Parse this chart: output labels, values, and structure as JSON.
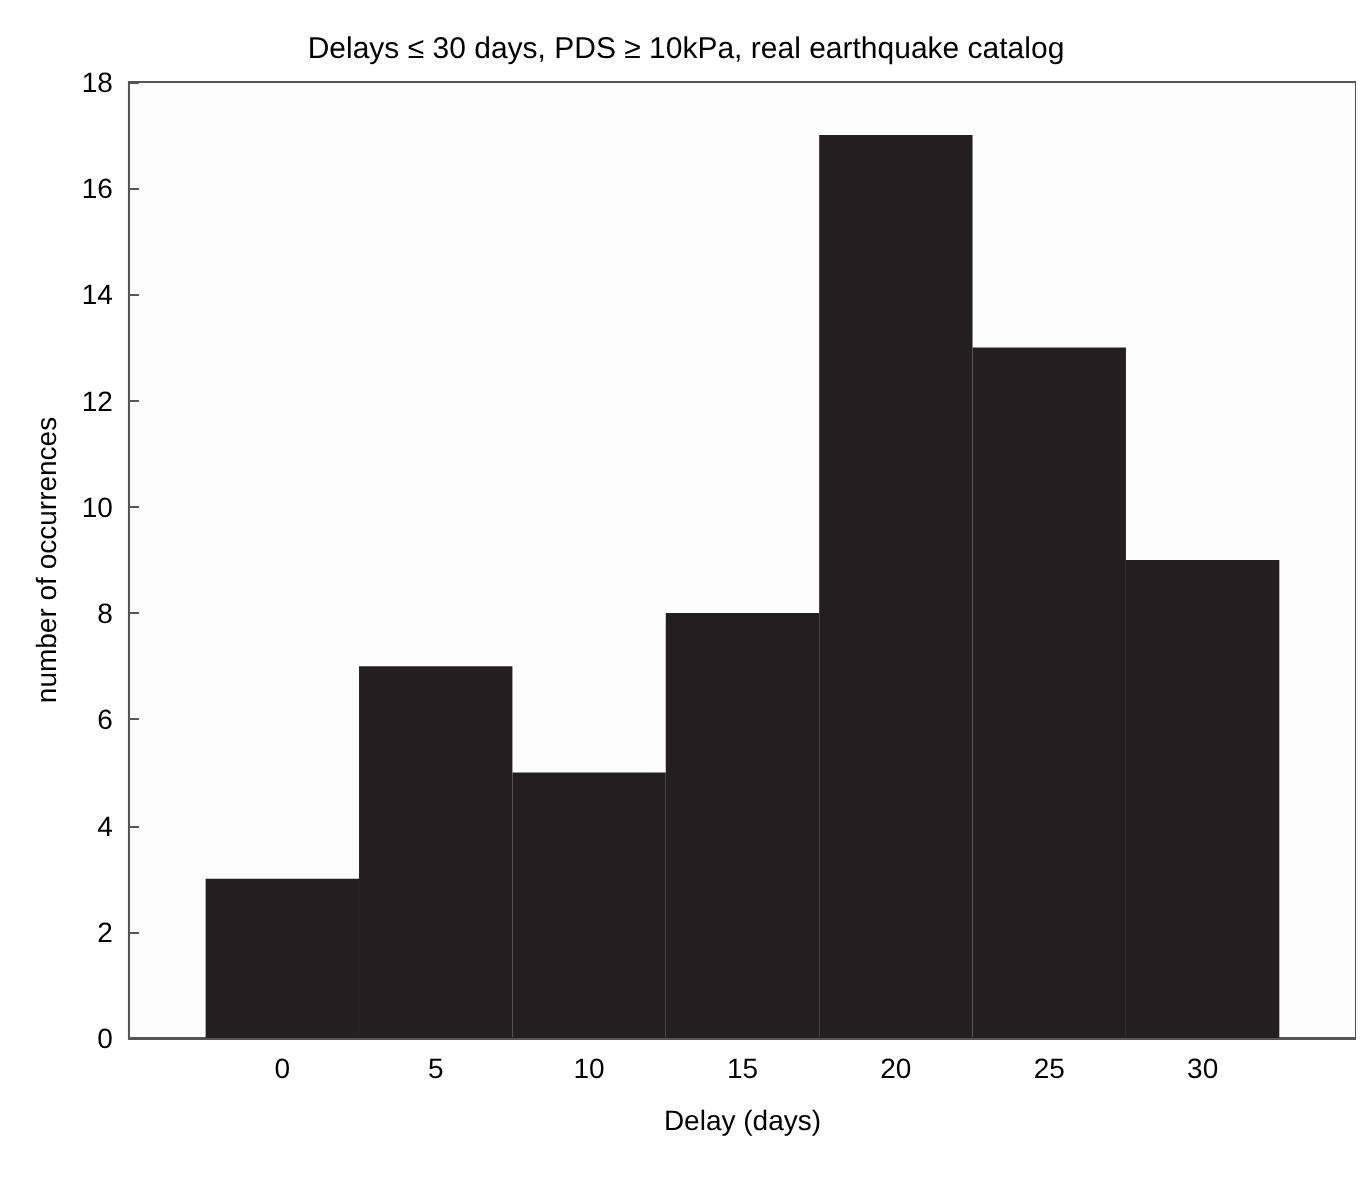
{
  "chart_data": {
    "type": "histogram",
    "title": "Delays ≤ 30 days, PDS ≥ 10kPa, real earthquake catalog",
    "xlabel": "Delay (days)",
    "ylabel": "number of occurrences",
    "bins": [
      -2.5,
      2.5,
      7.5,
      12.5,
      17.5,
      22.5,
      27.5,
      32.5
    ],
    "values": [
      3,
      7,
      5,
      8,
      17,
      13,
      9
    ],
    "color": "#231f20",
    "xlim": [
      -5,
      35
    ],
    "xticks": [
      0,
      5,
      10,
      15,
      20,
      25,
      30
    ],
    "ylim": [
      0,
      18
    ],
    "yticks": [
      0,
      2,
      4,
      6,
      8,
      10,
      12,
      14,
      16,
      18
    ],
    "grid": false
  }
}
